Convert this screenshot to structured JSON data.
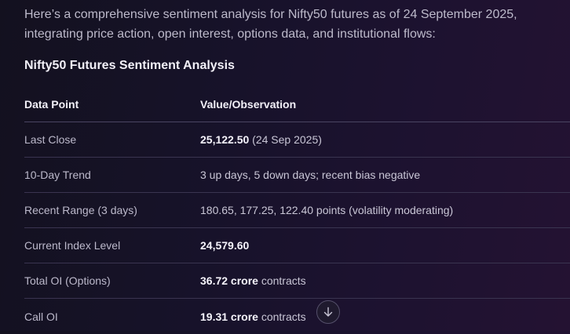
{
  "intro": "Here’s a comprehensive sentiment analysis for Nifty50 futures as of 24 September 2025, integrating price action, open interest, options data, and institutional flows:",
  "section_title": "Nifty50 Futures Sentiment Analysis",
  "table": {
    "headers": [
      "Data Point",
      "Value/Observation"
    ],
    "rows": [
      {
        "label": "Last Close",
        "bold": "25,122.50",
        "rest": " (24 Sep 2025)"
      },
      {
        "label": "10-Day Trend",
        "bold": "",
        "rest": "3 up days, 5 down days; recent bias negative"
      },
      {
        "label": "Recent Range (3 days)",
        "bold": "",
        "rest": "180.65, 177.25, 122.40 points (volatility moderating)"
      },
      {
        "label": "Current Index Level",
        "bold": "24,579.60",
        "rest": ""
      },
      {
        "label": "Total OI (Options)",
        "bold": "36.72 crore",
        "rest": " contracts"
      },
      {
        "label": "Call OI",
        "bold": "19.31 crore",
        "rest": " contracts"
      }
    ]
  },
  "scroll_button": {
    "icon": "arrow-down-icon"
  }
}
